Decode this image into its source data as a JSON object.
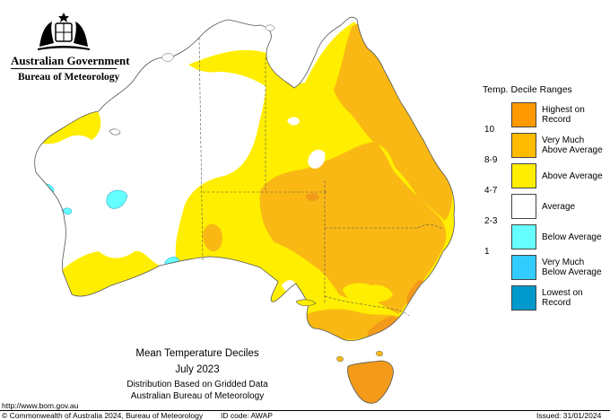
{
  "header": {
    "government": "Australian Government",
    "agency": "Bureau of Meteorology",
    "crest_icon": "coat-of-arms-icon"
  },
  "legend": {
    "title": "Temp. Decile Ranges",
    "items": [
      {
        "label_line1": "Highest on",
        "label_line2": "Record",
        "range": "",
        "color": "#ff9900"
      },
      {
        "label_line1": "Very Much",
        "label_line2": "Above Average",
        "range": "10",
        "color": "#ffbb00"
      },
      {
        "label_line1": "Above Average",
        "label_line2": "",
        "range": "8-9",
        "color": "#ffee00"
      },
      {
        "label_line1": "Average",
        "label_line2": "",
        "range": "4-7",
        "color": "#ffffff"
      },
      {
        "label_line1": "Below Average",
        "label_line2": "",
        "range": "2-3",
        "color": "#66ffff"
      },
      {
        "label_line1": "Very Much",
        "label_line2": "Below Average",
        "range": "1",
        "color": "#33ccff"
      },
      {
        "label_line1": "Lowest on",
        "label_line2": "Record",
        "range": "",
        "color": "#0099cc"
      }
    ]
  },
  "caption": {
    "title": "Mean Temperature Deciles",
    "period": "July 2023",
    "line1": "Distribution Based on Gridded Data",
    "line2": "Australian Bureau of Meteorology"
  },
  "footer": {
    "url": "http://www.bom.gov.au",
    "copyright": "© Commonwealth of Australia 2024, Bureau of Meteorology",
    "id_code": "ID code: AWAP",
    "issued": "Issued: 31/01/2024"
  },
  "colors": {
    "average": "#ffffff",
    "above": "#ffee00",
    "very_much_above": "#f9b814",
    "highest": "#f39a1a",
    "below": "#66ffff",
    "border": "#555555"
  }
}
